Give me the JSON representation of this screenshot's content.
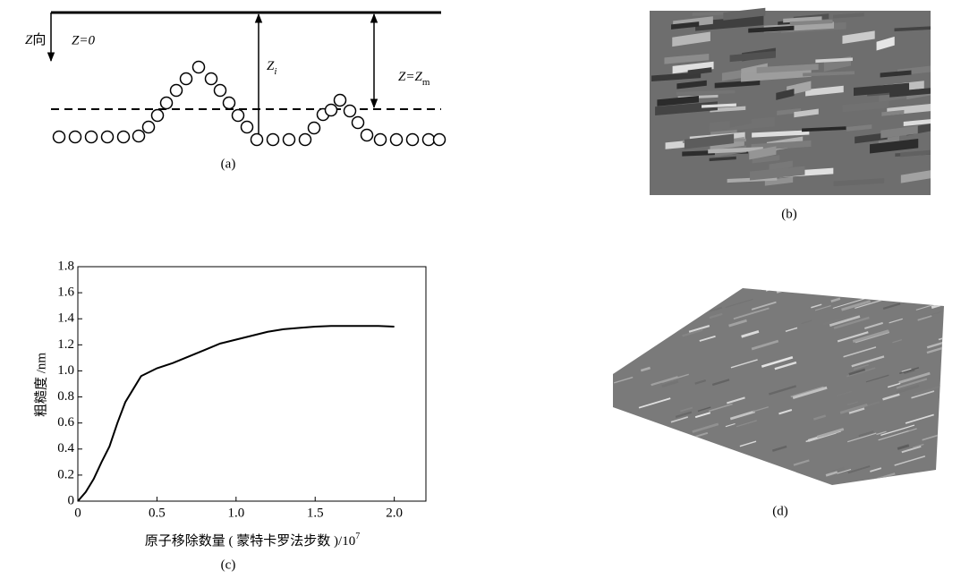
{
  "panel_a": {
    "z_axis": {
      "var": "Z",
      "text": "向"
    },
    "z_zero": "Z=0",
    "z_i": {
      "var": "Z",
      "sub": "i"
    },
    "z_m": {
      "text": "Z=Z",
      "sub": "m"
    },
    "caption": "(a)"
  },
  "panel_b": {
    "caption": "(b)"
  },
  "panel_d": {
    "caption": "(d)"
  },
  "chart_data": {
    "type": "line",
    "caption": "(c)",
    "ylabel": "粗糙度 /nm",
    "xlabel": "原子移除数量 ( 蒙特卡罗法步数 )/10",
    "xlabel_sup": "7",
    "x": [
      0,
      0.05,
      0.1,
      0.15,
      0.2,
      0.25,
      0.3,
      0.35,
      0.4,
      0.5,
      0.6,
      0.7,
      0.8,
      0.9,
      1.0,
      1.1,
      1.2,
      1.3,
      1.4,
      1.5,
      1.6,
      1.7,
      1.8,
      1.9,
      2.0
    ],
    "series": [
      {
        "color": "#000000",
        "values": [
          0,
          0.07,
          0.17,
          0.3,
          0.42,
          0.6,
          0.76,
          0.86,
          0.96,
          1.02,
          1.06,
          1.11,
          1.16,
          1.21,
          1.24,
          1.27,
          1.3,
          1.32,
          1.33,
          1.34,
          1.345,
          1.345,
          1.345,
          1.345,
          1.34
        ]
      }
    ],
    "xlim": [
      0,
      2.2
    ],
    "ylim": [
      0,
      1.8
    ],
    "xticks": [
      0,
      0.5,
      {
        "value": 1,
        "label": "1.0"
      },
      1.5,
      {
        "value": 2,
        "label": "2.0"
      }
    ],
    "yticks": [
      0,
      0.2,
      0.4,
      0.6,
      0.8,
      {
        "value": 1,
        "label": "1.0"
      },
      1.2,
      1.4,
      1.6,
      1.8
    ]
  }
}
